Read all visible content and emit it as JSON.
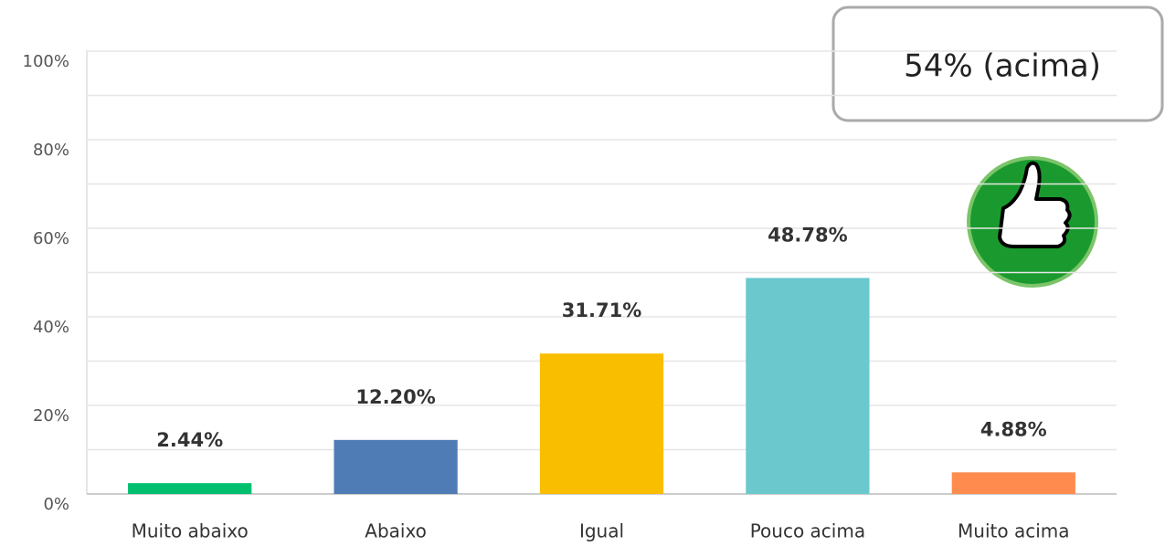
{
  "chart_data": {
    "type": "bar",
    "categories": [
      "Muito abaixo",
      "Abaixo",
      "Igual",
      "Pouco acima",
      "Muito acima"
    ],
    "values": [
      2.44,
      12.2,
      31.71,
      48.78,
      4.88
    ],
    "value_labels": [
      "2.44%",
      "12.20%",
      "31.71%",
      "48.78%",
      "4.88%"
    ],
    "colors": [
      "#00bf6f",
      "#507cb6",
      "#f9be00",
      "#6bc8cd",
      "#ff8b4f"
    ],
    "ylim": [
      0,
      100
    ],
    "yticks": [
      {
        "value": 0,
        "label": "0%"
      },
      {
        "value": 20,
        "label": "20%"
      },
      {
        "value": 40,
        "label": "40%"
      },
      {
        "value": 60,
        "label": "60%"
      },
      {
        "value": 80,
        "label": "80%"
      },
      {
        "value": 100,
        "label": "100%"
      }
    ],
    "minor_yticks": [
      10,
      30,
      50,
      70,
      90
    ],
    "grid": true,
    "annotation": "54% (acima)"
  }
}
